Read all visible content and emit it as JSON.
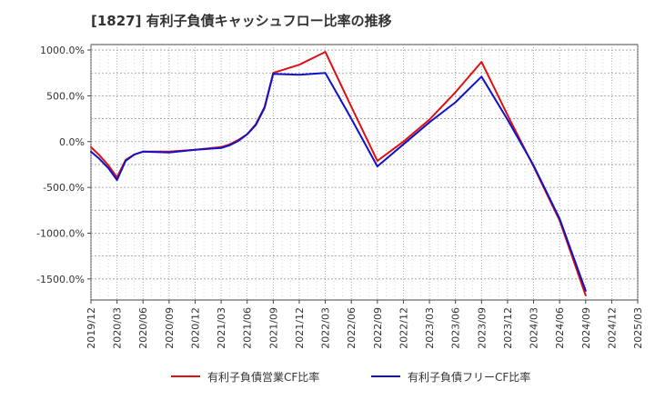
{
  "chart_data": {
    "type": "line",
    "title": "[1827]  有利子負債キャッシュフロー比率の推移",
    "x_labels": [
      "2019/12",
      "2020/03",
      "2020/06",
      "2020/09",
      "2020/12",
      "2021/03",
      "2021/06",
      "2021/09",
      "2021/12",
      "2022/03",
      "2022/06",
      "2022/09",
      "2022/12",
      "2023/03",
      "2023/06",
      "2023/09",
      "2023/12",
      "2024/03",
      "2024/06",
      "2024/09",
      "2024/12",
      "2025/03"
    ],
    "y_ticks": [
      1000,
      500,
      0,
      -500,
      -1000,
      -1500
    ],
    "y_tick_labels": [
      "1000.0%",
      "500.0%",
      "0.0%",
      "-500.0%",
      "-1000.0%",
      "-1500.0%"
    ],
    "ylim": [
      -1730,
      1060
    ],
    "xlim": [
      0,
      21
    ],
    "grid": true,
    "legend_position": "bottom",
    "series": [
      {
        "name": "有利子負債営業CF比率",
        "color": "#dd1111",
        "points": [
          [
            0,
            -60
          ],
          [
            0.33,
            -150
          ],
          [
            0.67,
            -260
          ],
          [
            1,
            -390
          ],
          [
            1.33,
            -200
          ],
          [
            1.67,
            -140
          ],
          [
            2,
            -110
          ],
          [
            3,
            -110
          ],
          [
            4,
            -90
          ],
          [
            5,
            -60
          ],
          [
            5.33,
            -30
          ],
          [
            5.67,
            20
          ],
          [
            6,
            80
          ],
          [
            6.33,
            190
          ],
          [
            6.67,
            380
          ],
          [
            7,
            750
          ],
          [
            8,
            840
          ],
          [
            9,
            980
          ],
          [
            10,
            380
          ],
          [
            11,
            -210
          ],
          [
            12,
            0
          ],
          [
            13,
            240
          ],
          [
            14,
            540
          ],
          [
            15,
            870
          ],
          [
            16,
            290
          ],
          [
            17,
            -270
          ],
          [
            18,
            -860
          ],
          [
            19,
            -1680
          ]
        ]
      },
      {
        "name": "有利子負債フリーCF比率",
        "color": "#1111cc",
        "points": [
          [
            0,
            -110
          ],
          [
            0.33,
            -190
          ],
          [
            0.67,
            -290
          ],
          [
            1,
            -420
          ],
          [
            1.33,
            -210
          ],
          [
            1.67,
            -140
          ],
          [
            2,
            -110
          ],
          [
            3,
            -120
          ],
          [
            4,
            -90
          ],
          [
            5,
            -70
          ],
          [
            5.33,
            -40
          ],
          [
            5.67,
            10
          ],
          [
            6,
            80
          ],
          [
            6.33,
            180
          ],
          [
            6.67,
            370
          ],
          [
            7,
            740
          ],
          [
            8,
            730
          ],
          [
            9,
            750
          ],
          [
            10,
            250
          ],
          [
            11,
            -270
          ],
          [
            12,
            -30
          ],
          [
            13,
            210
          ],
          [
            14,
            430
          ],
          [
            15,
            710
          ],
          [
            16,
            240
          ],
          [
            17,
            -260
          ],
          [
            18,
            -840
          ],
          [
            19,
            -1630
          ]
        ]
      }
    ]
  }
}
